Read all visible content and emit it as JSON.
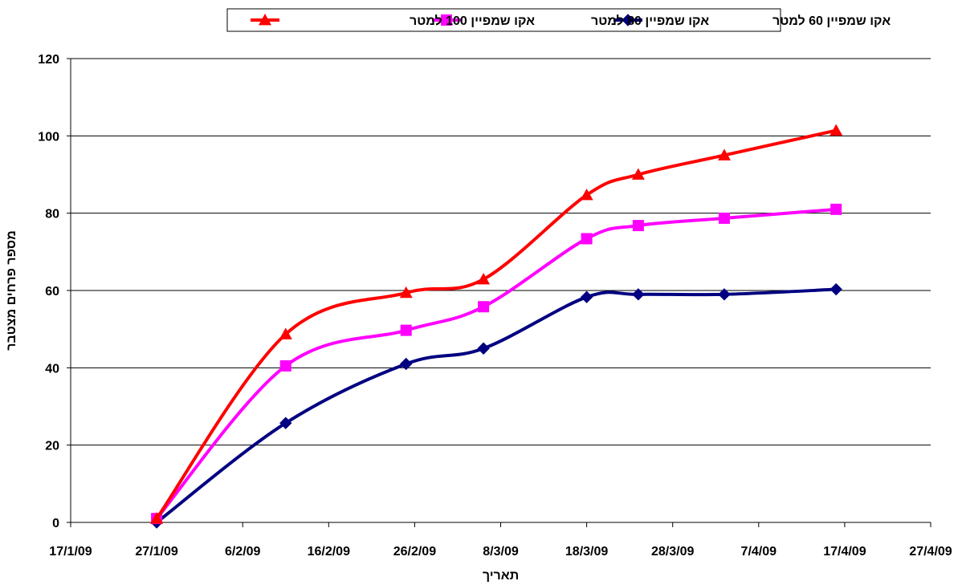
{
  "chart_data": {
    "type": "line",
    "title": "",
    "xlabel": "תאריך",
    "ylabel": "מספר פרחים מצטבר",
    "ylim": [
      0,
      120
    ],
    "yticks": [
      0,
      20,
      40,
      60,
      80,
      100,
      120
    ],
    "xlim": [
      "2009-01-17",
      "2009-04-27"
    ],
    "xtick_labels": [
      "17/1/09",
      "27/1/09",
      "6/2/09",
      "16/2/09",
      "26/2/09",
      "8/3/09",
      "18/3/09",
      "28/3/09",
      "7/4/09",
      "17/4/09",
      "27/4/09"
    ],
    "grid": "horizontal major gridlines",
    "legend_position": "top",
    "x": [
      "2009-01-27",
      "2009-02-11",
      "2009-02-25",
      "2009-03-06",
      "2009-03-18",
      "2009-03-24",
      "2009-04-03",
      "2009-04-16"
    ],
    "series": [
      {
        "name": "אקו שמפיין 60 למטר",
        "color": "#000080",
        "marker": "diamond",
        "values": [
          0,
          25.7,
          41,
          45,
          58.3,
          59,
          59,
          60.3
        ]
      },
      {
        "name": "אקו שמפיין 80 למטר",
        "color": "#FF00FF",
        "marker": "square",
        "values": [
          1,
          40.5,
          49.7,
          55.8,
          73.4,
          76.8,
          78.7,
          81
        ]
      },
      {
        "name": "אקו שמפיין 100 למטר",
        "color": "#FF0000",
        "marker": "triangle",
        "values": [
          1,
          48.7,
          59.4,
          62.9,
          84.7,
          90,
          95,
          101.4
        ]
      }
    ]
  }
}
